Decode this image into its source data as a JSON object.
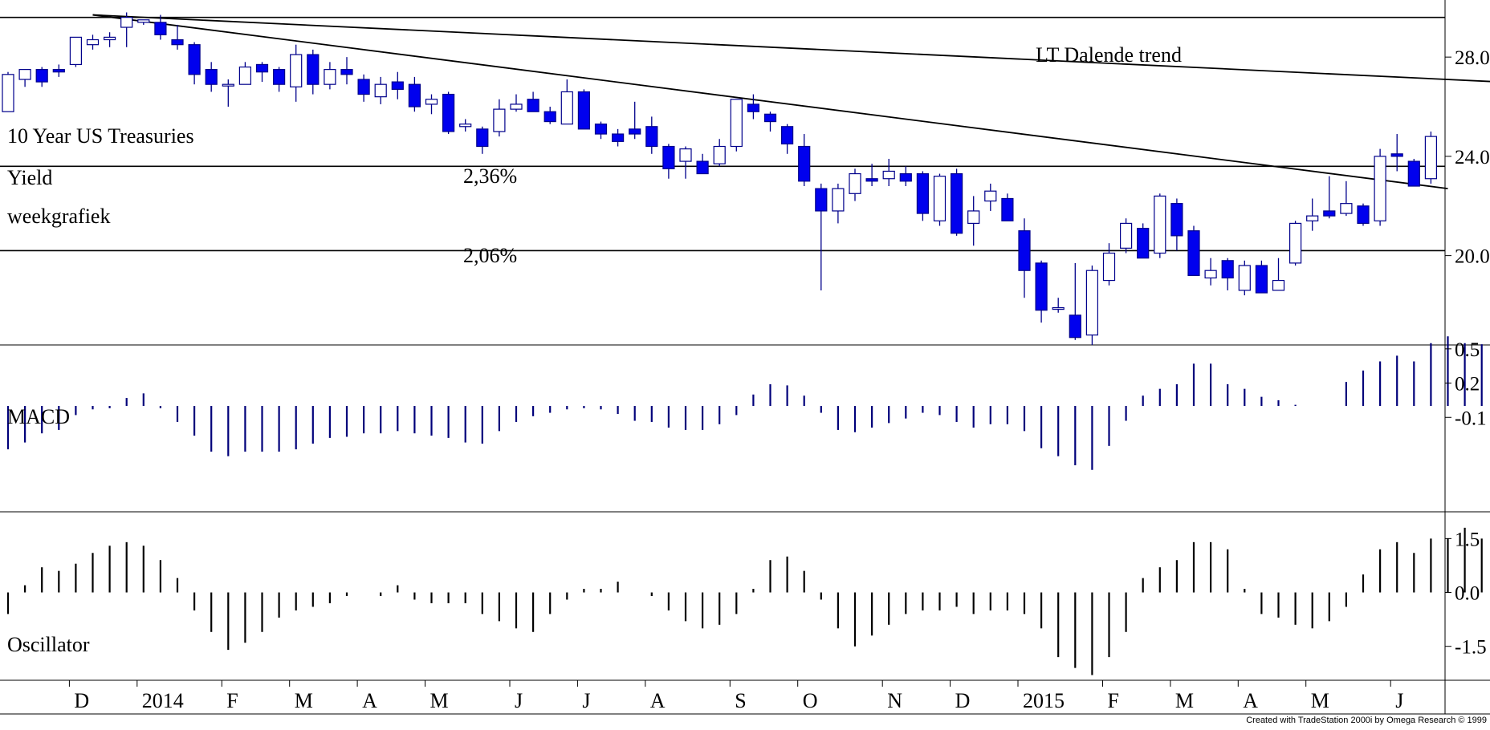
{
  "chart_data": {
    "type": "candlestick",
    "panels": {
      "price": {
        "y_ticks": [
          {
            "value": 28.0,
            "label": "28.0"
          },
          {
            "value": 24.0,
            "label": "24.0"
          },
          {
            "value": 20.0,
            "label": "20.0"
          }
        ],
        "ylim": [
          16.4,
          30.3
        ],
        "labels": {
          "title": "10 Year US Treasuries",
          "yield": "Yield",
          "period": "weekgrafiek",
          "trend": "LT Dalende trend",
          "level_high": "2,36%",
          "level_low": "2,06%"
        },
        "horizontal_levels": [
          29.6,
          23.6,
          20.2
        ],
        "trendlines": [
          {
            "name": "long_term",
            "x1": 5,
            "y1": 29.7,
            "x2": 88,
            "y2": 27.0
          },
          {
            "name": "short_term",
            "x1": 5,
            "y1": 29.7,
            "x2": 85,
            "y2": 22.7
          }
        ],
        "candles": [
          [
            25.8,
            26.0,
            27.4,
            27.3
          ],
          [
            27.1,
            26.8,
            27.5,
            27.5
          ],
          [
            27.5,
            26.8,
            27.6,
            27.0
          ],
          [
            27.5,
            27.2,
            27.7,
            27.4
          ],
          [
            27.7,
            27.6,
            28.8,
            28.8
          ],
          [
            28.5,
            28.3,
            28.9,
            28.7
          ],
          [
            28.7,
            28.4,
            29.0,
            28.8
          ],
          [
            29.2,
            28.4,
            29.8,
            29.6
          ],
          [
            29.4,
            29.3,
            29.5,
            29.5
          ],
          [
            29.4,
            28.7,
            29.7,
            28.9
          ],
          [
            28.7,
            28.3,
            29.3,
            28.5
          ],
          [
            28.5,
            26.9,
            28.6,
            27.3
          ],
          [
            27.5,
            26.6,
            27.8,
            26.9
          ],
          [
            26.9,
            26.0,
            27.1,
            26.9
          ],
          [
            26.9,
            26.9,
            27.8,
            27.6
          ],
          [
            27.7,
            27.0,
            27.8,
            27.4
          ],
          [
            27.5,
            26.6,
            27.6,
            26.9
          ],
          [
            26.8,
            26.2,
            28.5,
            28.1
          ],
          [
            28.1,
            26.5,
            28.3,
            26.9
          ],
          [
            26.9,
            26.7,
            27.8,
            27.5
          ],
          [
            27.5,
            26.9,
            28.0,
            27.3
          ],
          [
            27.1,
            26.2,
            27.3,
            26.5
          ],
          [
            26.4,
            26.1,
            27.2,
            26.9
          ],
          [
            27.0,
            26.3,
            27.4,
            26.7
          ],
          [
            26.9,
            25.8,
            27.2,
            26.0
          ],
          [
            26.1,
            25.7,
            26.5,
            26.3
          ],
          [
            26.5,
            24.9,
            26.6,
            25.0
          ],
          [
            25.2,
            25.0,
            25.5,
            25.3
          ],
          [
            25.1,
            24.1,
            25.2,
            24.4
          ],
          [
            25.0,
            24.8,
            26.3,
            25.9
          ],
          [
            25.9,
            25.8,
            26.5,
            26.1
          ],
          [
            26.3,
            25.8,
            26.6,
            25.8
          ],
          [
            25.8,
            25.3,
            26.0,
            25.4
          ],
          [
            25.3,
            25.3,
            27.1,
            26.6
          ],
          [
            26.6,
            25.2,
            26.7,
            25.1
          ],
          [
            25.3,
            24.7,
            25.4,
            24.9
          ],
          [
            24.9,
            24.4,
            25.1,
            24.6
          ],
          [
            25.1,
            24.7,
            26.2,
            24.9
          ],
          [
            25.2,
            24.1,
            25.6,
            24.4
          ],
          [
            24.4,
            23.1,
            24.5,
            23.5
          ],
          [
            23.8,
            23.1,
            24.4,
            24.3
          ],
          [
            23.8,
            23.3,
            24.1,
            23.3
          ],
          [
            23.7,
            23.6,
            24.7,
            24.4
          ],
          [
            24.4,
            24.2,
            26.3,
            26.3
          ],
          [
            26.1,
            25.5,
            26.5,
            25.8
          ],
          [
            25.7,
            25.0,
            25.8,
            25.4
          ],
          [
            25.2,
            24.1,
            25.3,
            24.5
          ],
          [
            24.4,
            22.8,
            24.9,
            23.0
          ],
          [
            22.7,
            18.6,
            22.9,
            21.8
          ],
          [
            21.8,
            21.3,
            22.9,
            22.7
          ],
          [
            22.5,
            22.2,
            23.5,
            23.3
          ],
          [
            23.1,
            22.8,
            23.7,
            23.0
          ],
          [
            23.1,
            22.8,
            23.9,
            23.4
          ],
          [
            23.3,
            22.8,
            23.6,
            23.0
          ],
          [
            23.3,
            21.4,
            23.4,
            21.7
          ],
          [
            21.4,
            21.2,
            23.3,
            23.2
          ],
          [
            23.3,
            20.8,
            23.5,
            20.9
          ],
          [
            21.3,
            20.4,
            22.4,
            21.8
          ],
          [
            22.2,
            21.8,
            22.9,
            22.6
          ],
          [
            22.3,
            21.5,
            22.5,
            21.4
          ],
          [
            21.0,
            18.3,
            21.5,
            19.4
          ],
          [
            19.7,
            17.3,
            19.8,
            17.8
          ],
          [
            17.9,
            17.7,
            18.3,
            17.9
          ],
          [
            17.6,
            16.6,
            19.7,
            16.7
          ],
          [
            16.8,
            16.4,
            19.6,
            19.4
          ],
          [
            19.0,
            18.8,
            20.5,
            20.1
          ],
          [
            20.3,
            20.1,
            21.5,
            21.3
          ],
          [
            21.1,
            20.4,
            21.3,
            19.9
          ],
          [
            20.1,
            19.9,
            22.5,
            22.4
          ],
          [
            22.1,
            20.2,
            22.3,
            20.8
          ],
          [
            21.0,
            19.2,
            21.2,
            19.2
          ],
          [
            19.1,
            18.8,
            19.9,
            19.4
          ],
          [
            19.8,
            18.6,
            19.9,
            19.1
          ],
          [
            18.6,
            18.4,
            19.8,
            19.6
          ],
          [
            19.6,
            18.5,
            19.8,
            18.5
          ],
          [
            18.6,
            18.6,
            19.9,
            19.0
          ],
          [
            19.7,
            19.6,
            21.4,
            21.3
          ],
          [
            21.4,
            21.0,
            22.3,
            21.6
          ],
          [
            21.8,
            21.5,
            23.2,
            21.6
          ],
          [
            21.7,
            21.6,
            23.0,
            22.1
          ],
          [
            22.0,
            21.2,
            22.1,
            21.3
          ],
          [
            21.4,
            21.2,
            24.3,
            24.0
          ],
          [
            24.1,
            23.4,
            24.9,
            24.0
          ],
          [
            23.8,
            22.8,
            23.9,
            22.8
          ],
          [
            23.1,
            22.9,
            25.0,
            24.8
          ]
        ]
      },
      "macd": {
        "label": "MACD",
        "ylim": [
          -0.92,
          0.52
        ],
        "y_ticks": [
          {
            "value": 0.5,
            "label": "0.5"
          },
          {
            "value": 0.2,
            "label": "0.2"
          },
          {
            "value": -0.1,
            "label": "-0.1"
          }
        ],
        "values": [
          -0.38,
          -0.32,
          -0.24,
          -0.21,
          -0.08,
          -0.03,
          -0.02,
          0.07,
          0.11,
          -0.02,
          -0.14,
          -0.26,
          -0.4,
          -0.44,
          -0.4,
          -0.4,
          -0.4,
          -0.38,
          -0.33,
          -0.28,
          -0.27,
          -0.24,
          -0.24,
          -0.22,
          -0.24,
          -0.26,
          -0.28,
          -0.32,
          -0.33,
          -0.22,
          -0.14,
          -0.09,
          -0.06,
          -0.03,
          -0.02,
          -0.03,
          -0.07,
          -0.13,
          -0.14,
          -0.19,
          -0.21,
          -0.21,
          -0.16,
          -0.08,
          0.1,
          0.19,
          0.18,
          0.09,
          -0.06,
          -0.21,
          -0.23,
          -0.19,
          -0.15,
          -0.11,
          -0.06,
          -0.08,
          -0.14,
          -0.19,
          -0.16,
          -0.16,
          -0.22,
          -0.37,
          -0.44,
          -0.52,
          -0.56,
          -0.35,
          -0.13,
          0.09,
          0.15,
          0.19,
          0.37,
          0.37,
          0.19,
          0.15,
          0.08,
          0.05,
          0.01,
          0.0,
          0.0,
          0.21,
          0.31,
          0.39,
          0.44,
          0.39,
          0.55,
          0.61,
          0.55,
          0.54
        ]
      },
      "oscillator": {
        "label": "Oscillator",
        "ylim": [
          -2.4,
          2.2
        ],
        "y_ticks": [
          {
            "value": 1.5,
            "label": "1.5"
          },
          {
            "value": 0.0,
            "label": "0.0"
          },
          {
            "value": -1.5,
            "label": "-1.5"
          }
        ],
        "values": [
          -0.6,
          0.2,
          0.7,
          0.6,
          0.8,
          1.1,
          1.3,
          1.4,
          1.3,
          0.9,
          0.4,
          -0.5,
          -1.1,
          -1.6,
          -1.4,
          -1.1,
          -0.7,
          -0.5,
          -0.4,
          -0.3,
          -0.1,
          0.0,
          -0.1,
          0.2,
          -0.2,
          -0.3,
          -0.3,
          -0.3,
          -0.6,
          -0.8,
          -1.0,
          -1.1,
          -0.6,
          -0.2,
          0.1,
          0.1,
          0.3,
          0.0,
          -0.1,
          -0.5,
          -0.8,
          -1.0,
          -0.9,
          -0.6,
          0.1,
          0.9,
          1.0,
          0.6,
          -0.2,
          -1.0,
          -1.5,
          -1.2,
          -0.9,
          -0.6,
          -0.5,
          -0.5,
          -0.4,
          -0.6,
          -0.5,
          -0.5,
          -0.6,
          -1.0,
          -1.8,
          -2.1,
          -2.3,
          -1.8,
          -1.1,
          0.4,
          0.7,
          0.9,
          1.4,
          1.4,
          1.2,
          0.1,
          -0.6,
          -0.7,
          -0.9,
          -1.0,
          -0.8,
          -0.4,
          0.5,
          1.2,
          1.4,
          1.1,
          1.5,
          1.5,
          1.8,
          1.5
        ]
      }
    },
    "x_labels": [
      {
        "label": "D",
        "bar": 4
      },
      {
        "label": "2014",
        "bar": 8
      },
      {
        "label": "F",
        "bar": 13
      },
      {
        "label": "M",
        "bar": 17
      },
      {
        "label": "A",
        "bar": 21
      },
      {
        "label": "M",
        "bar": 25
      },
      {
        "label": "J",
        "bar": 30
      },
      {
        "label": "J",
        "bar": 34
      },
      {
        "label": "A",
        "bar": 38
      },
      {
        "label": "S",
        "bar": 43
      },
      {
        "label": "O",
        "bar": 47
      },
      {
        "label": "N",
        "bar": 52
      },
      {
        "label": "D",
        "bar": 56
      },
      {
        "label": "2015",
        "bar": 60
      },
      {
        "label": "F",
        "bar": 65
      },
      {
        "label": "M",
        "bar": 69
      },
      {
        "label": "A",
        "bar": 73
      },
      {
        "label": "M",
        "bar": 77
      },
      {
        "label": "J",
        "bar": 82
      }
    ],
    "colors": {
      "up_fill": "#ffffff",
      "down_fill": "#0000ee",
      "candle_border": "#00008b",
      "histogram": "#00007a",
      "oscillator": "#000000",
      "lines": "#000000"
    }
  },
  "footer": {
    "credit": "Created with TradeStation 2000i by Omega Research © 1999"
  }
}
